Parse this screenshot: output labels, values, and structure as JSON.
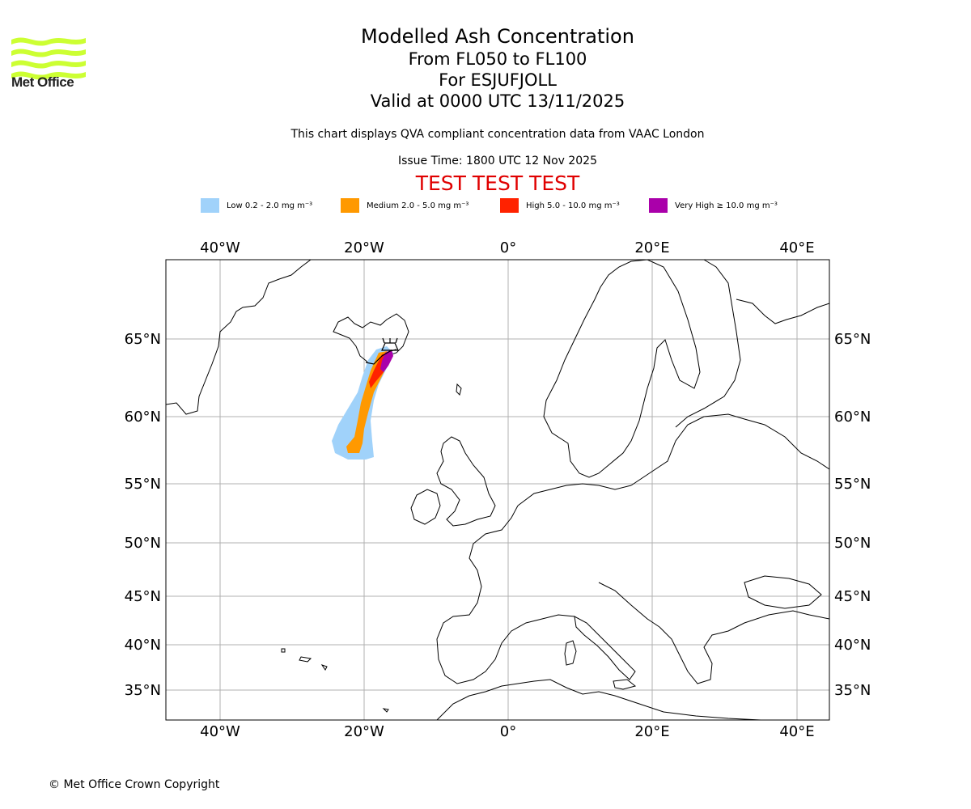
{
  "logo": {
    "name": "Met Office",
    "color": "#ccff33"
  },
  "title": {
    "main": "Modelled Ash Concentration",
    "levels": "From FL050 to FL100",
    "volcano": "For ESJUFJOLL",
    "valid": "Valid at 0000 UTC 13/11/2025"
  },
  "subtitle": "This chart displays QVA compliant concentration data from VAAC London",
  "issue_time": "Issue Time: 1800 UTC 12 Nov 2025",
  "test_banner": "TEST TEST TEST",
  "legend": [
    {
      "label": "Low 0.2 - 2.0 mg m⁻³",
      "color": "#a0d2fa"
    },
    {
      "label": "Medium 2.0 - 5.0 mg m⁻³",
      "color": "#ff9900"
    },
    {
      "label": "High 5.0 - 10.0 mg m⁻³",
      "color": "#ff2200"
    },
    {
      "label": "Very High ≥ 10.0 mg m⁻³",
      "color": "#aa00aa"
    }
  ],
  "axes": {
    "lon_labels": [
      "40°W",
      "20°W",
      "0°",
      "20°E",
      "40°E"
    ],
    "lat_labels": [
      "65°N",
      "60°N",
      "55°N",
      "50°N",
      "45°N",
      "40°N",
      "35°N"
    ]
  },
  "copyright": "© Met Office Crown Copyright"
}
